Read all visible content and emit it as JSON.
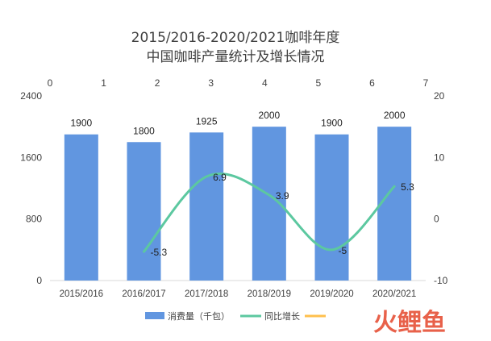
{
  "chart_data": {
    "type": "bar",
    "title": "2015/2016-2020/2021咖啡年度",
    "subtitle": "中国咖啡产量统计及增长情况",
    "categories": [
      "2015/2016",
      "2016/2017",
      "2017/2018",
      "2018/2019",
      "2019/2020",
      "2020/2021"
    ],
    "series": [
      {
        "name": "消费量（千包）",
        "type": "bar",
        "axis": "left",
        "color": "#6196e0",
        "values": [
          1900,
          1800,
          1925,
          2000,
          1900,
          2000
        ]
      },
      {
        "name": "同比增长",
        "type": "line",
        "axis": "right",
        "color": "#5cc8a0",
        "values": [
          null,
          -5.3,
          6.9,
          3.9,
          -5,
          5.3
        ]
      }
    ],
    "extra_legend": {
      "name": "",
      "color": "#ffc04d"
    },
    "left_axis": {
      "min": 0,
      "max": 2400,
      "ticks": [
        0,
        800,
        1600,
        2400
      ]
    },
    "right_axis": {
      "min": -10,
      "max": 20,
      "ticks": [
        -10,
        0,
        10,
        20
      ]
    },
    "top_axis": {
      "min": 0,
      "max": 7,
      "ticks": [
        0,
        1,
        2,
        3,
        4,
        5,
        6,
        7
      ]
    },
    "grid": false,
    "legend": "bottom"
  },
  "watermark": {
    "text": "火鲤鱼"
  }
}
